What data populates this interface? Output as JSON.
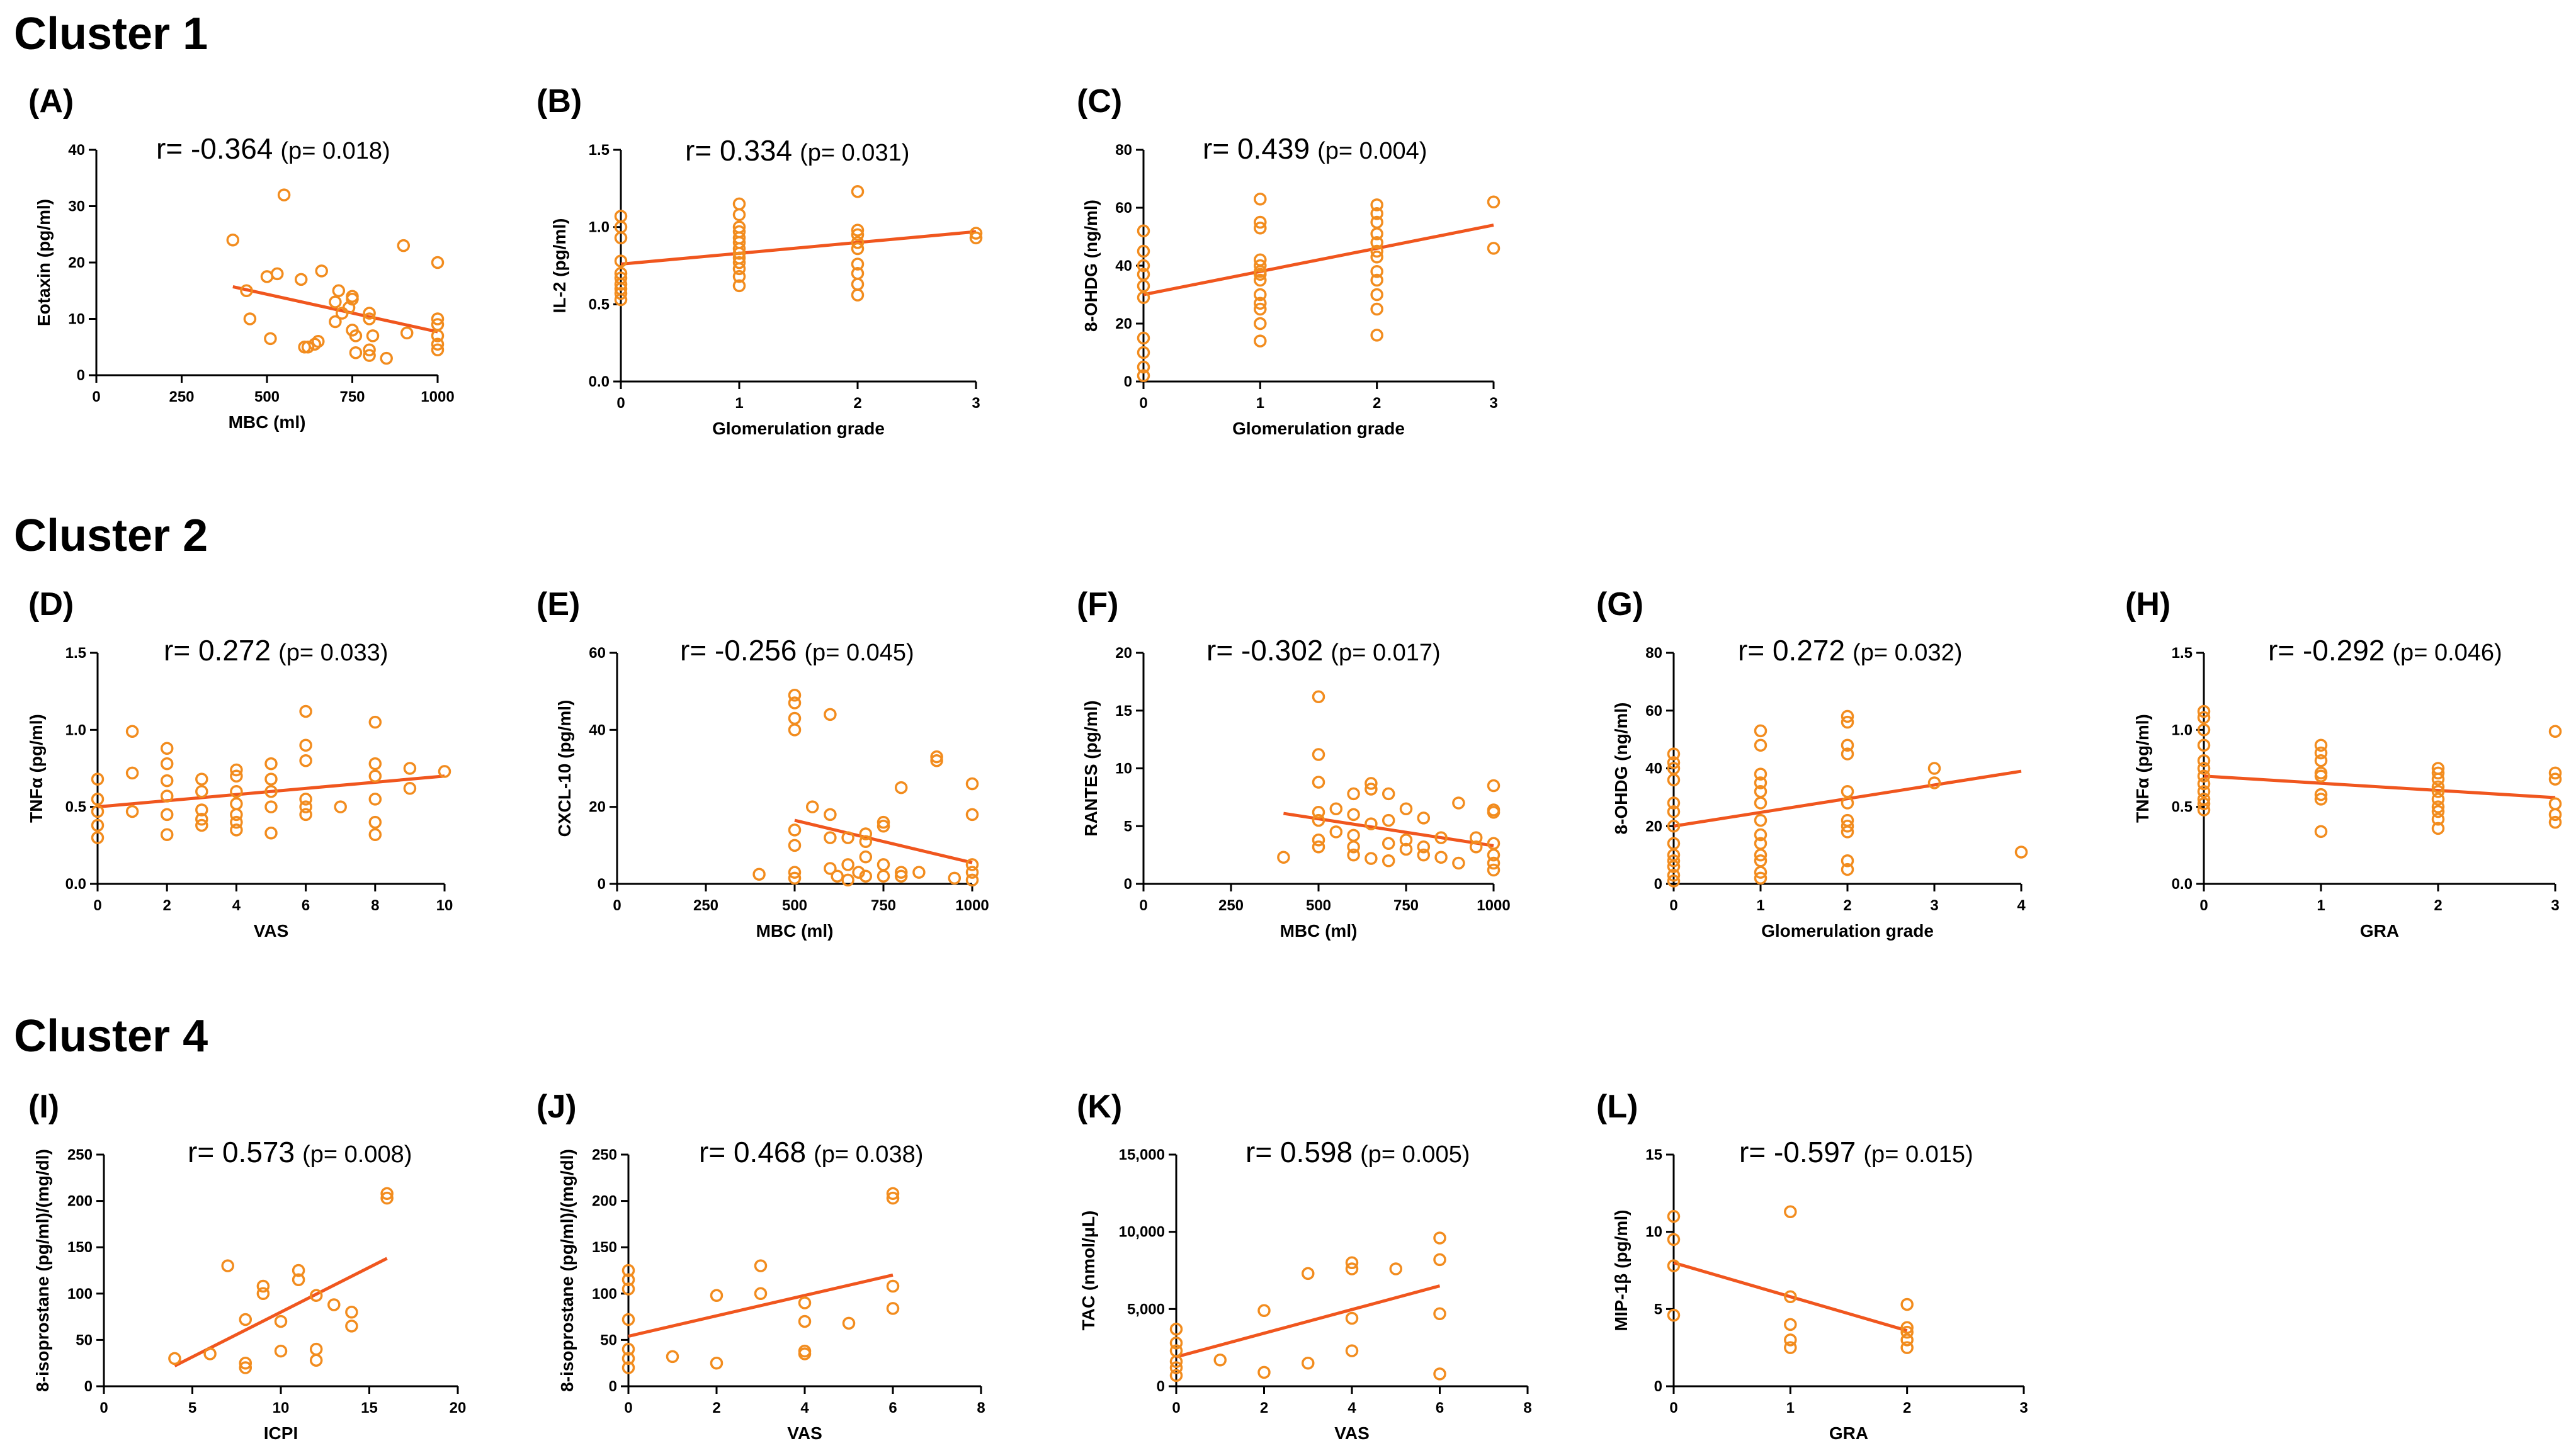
{
  "colors": {
    "marker": "#F28C1E",
    "fit_line": "#F0561E",
    "axis": "#000000"
  },
  "clusters": [
    {
      "title": "Cluster 1"
    },
    {
      "title": "Cluster 2"
    },
    {
      "title": "Cluster 4"
    }
  ],
  "chart_data": [
    {
      "id": "A",
      "letter": "(A)",
      "type": "scatter",
      "r_text": "r= -0.364",
      "p_text": "(p= 0.018)",
      "xlabel": "MBC (ml)",
      "ylabel": "Eotaxin (pg/ml)",
      "xlim": [
        0,
        1000
      ],
      "ylim": [
        0,
        40
      ],
      "xticks": [
        0,
        250,
        500,
        750,
        1000
      ],
      "yticks": [
        0,
        10,
        20,
        30,
        40
      ],
      "xtick_labels": [
        "0",
        "250",
        "500",
        "750",
        "1000"
      ],
      "ytick_labels": [
        "0",
        "10",
        "20",
        "30",
        "40"
      ],
      "x": [
        400,
        440,
        450,
        500,
        510,
        530,
        550,
        600,
        610,
        620,
        640,
        650,
        660,
        700,
        700,
        710,
        720,
        740,
        750,
        750,
        750,
        760,
        760,
        800,
        800,
        800,
        800,
        810,
        850,
        900,
        910,
        1000,
        1000,
        1000,
        1000,
        1000,
        1000
      ],
      "y": [
        24,
        15,
        10,
        17.5,
        6.5,
        18,
        32,
        17,
        5,
        5,
        5.5,
        6,
        18.5,
        9.5,
        13,
        15,
        11,
        12,
        14,
        13.5,
        8,
        4,
        7,
        11,
        10,
        4.5,
        3.5,
        7,
        3,
        23,
        7.5,
        20,
        10,
        9,
        7,
        5.5,
        4.5
      ],
      "fit": [
        [
          400,
          15.7
        ],
        [
          1000,
          7.7
        ]
      ]
    },
    {
      "id": "B",
      "letter": "(B)",
      "type": "scatter",
      "r_text": "r= 0.334",
      "p_text": "(p= 0.031)",
      "xlabel": "Glomerulation grade",
      "ylabel": "IL-2 (pg/ml)",
      "xlim": [
        0,
        3
      ],
      "ylim": [
        0,
        1.5
      ],
      "xticks": [
        0,
        1,
        2,
        3
      ],
      "yticks": [
        0,
        0.5,
        1.0,
        1.5
      ],
      "xtick_labels": [
        "0",
        "1",
        "2",
        "3"
      ],
      "ytick_labels": [
        "0.0",
        "0.5",
        "1.0",
        "1.5"
      ],
      "x": [
        0,
        0,
        0,
        0,
        0,
        0,
        0,
        0,
        0,
        0,
        1,
        1,
        1,
        1,
        1,
        1,
        1,
        1,
        1,
        1,
        1,
        1,
        1,
        2,
        2,
        2,
        2,
        2,
        2,
        2,
        2,
        2,
        3,
        3
      ],
      "y": [
        1.07,
        1.0,
        0.93,
        0.78,
        0.7,
        0.67,
        0.63,
        0.6,
        0.57,
        0.53,
        1.15,
        1.08,
        1.0,
        0.97,
        0.93,
        0.9,
        0.86,
        0.83,
        0.8,
        0.77,
        0.73,
        0.68,
        0.62,
        1.23,
        0.98,
        0.95,
        0.9,
        0.86,
        0.76,
        0.7,
        0.63,
        0.56,
        0.96,
        0.93
      ],
      "fit": [
        [
          0,
          0.76
        ],
        [
          3,
          0.97
        ]
      ]
    },
    {
      "id": "C",
      "letter": "(C)",
      "type": "scatter",
      "r_text": "r= 0.439",
      "p_text": "(p= 0.004)",
      "xlabel": "Glomerulation grade",
      "ylabel": "8-OHDG (ng/ml)",
      "xlim": [
        0,
        3
      ],
      "ylim": [
        0,
        80
      ],
      "xticks": [
        0,
        1,
        2,
        3
      ],
      "yticks": [
        0,
        20,
        40,
        60,
        80
      ],
      "xtick_labels": [
        "0",
        "1",
        "2",
        "3"
      ],
      "ytick_labels": [
        "0",
        "20",
        "40",
        "60",
        "80"
      ],
      "x": [
        0,
        0,
        0,
        0,
        0,
        0,
        0,
        0,
        0,
        0,
        1,
        1,
        1,
        1,
        1,
        1,
        1,
        1,
        1,
        1,
        1,
        1,
        1,
        2,
        2,
        2,
        2,
        2,
        2,
        2,
        2,
        2,
        2,
        2,
        2,
        3,
        3
      ],
      "y": [
        52,
        45,
        40,
        33,
        29,
        15,
        10,
        5,
        2,
        37,
        63,
        55,
        53,
        42,
        40,
        38,
        37,
        30,
        27,
        25,
        20,
        14,
        35,
        61,
        58,
        55,
        51,
        48,
        45,
        43,
        38,
        35,
        30,
        25,
        16,
        62,
        46
      ],
      "fit": [
        [
          0,
          30
        ],
        [
          3,
          54
        ]
      ]
    },
    {
      "id": "D",
      "letter": "(D)",
      "type": "scatter",
      "r_text": "r= 0.272",
      "p_text": "(p= 0.033)",
      "xlabel": "VAS",
      "ylabel": "TNFα (pg/ml)",
      "xlim": [
        0,
        10
      ],
      "ylim": [
        0,
        1.5
      ],
      "xticks": [
        0,
        2,
        4,
        6,
        8,
        10
      ],
      "yticks": [
        0,
        0.5,
        1.0,
        1.5
      ],
      "xtick_labels": [
        "0",
        "2",
        "4",
        "6",
        "8",
        "10"
      ],
      "ytick_labels": [
        "0.0",
        "0.5",
        "1.0",
        "1.5"
      ],
      "x": [
        0,
        0,
        0,
        0,
        0,
        1,
        1,
        1,
        2,
        2,
        2,
        2,
        2,
        2,
        3,
        3,
        3,
        3,
        3,
        4,
        4,
        4,
        4,
        4,
        4,
        4,
        5,
        5,
        5,
        5,
        5,
        6,
        6,
        6,
        6,
        6,
        6,
        7,
        8,
        8,
        8,
        8,
        8,
        8,
        9,
        9,
        10
      ],
      "y": [
        0.68,
        0.55,
        0.47,
        0.38,
        0.3,
        0.99,
        0.72,
        0.47,
        0.88,
        0.78,
        0.67,
        0.57,
        0.45,
        0.32,
        0.68,
        0.6,
        0.48,
        0.42,
        0.38,
        0.74,
        0.7,
        0.6,
        0.52,
        0.45,
        0.4,
        0.35,
        0.78,
        0.68,
        0.6,
        0.5,
        0.33,
        1.12,
        0.9,
        0.8,
        0.55,
        0.5,
        0.45,
        0.5,
        1.05,
        0.78,
        0.7,
        0.55,
        0.4,
        0.32,
        0.75,
        0.62,
        0.73
      ],
      "fit": [
        [
          0,
          0.5
        ],
        [
          10,
          0.7
        ]
      ]
    },
    {
      "id": "E",
      "letter": "(E)",
      "type": "scatter",
      "r_text": "r= -0.256",
      "p_text": "(p= 0.045)",
      "xlabel": "MBC (ml)",
      "ylabel": "CXCL-10 (pg/ml)",
      "xlim": [
        0,
        1000
      ],
      "ylim": [
        0,
        60
      ],
      "xticks": [
        0,
        250,
        500,
        750,
        1000
      ],
      "yticks": [
        0,
        20,
        40,
        60
      ],
      "xtick_labels": [
        "0",
        "250",
        "500",
        "750",
        "1000"
      ],
      "ytick_labels": [
        "0",
        "20",
        "40",
        "60"
      ],
      "x": [
        400,
        500,
        500,
        500,
        500,
        500,
        500,
        500,
        500,
        550,
        600,
        600,
        600,
        600,
        620,
        650,
        650,
        650,
        680,
        700,
        700,
        700,
        700,
        750,
        750,
        750,
        750,
        800,
        800,
        800,
        850,
        900,
        900,
        950,
        1000,
        1000,
        1000,
        1000,
        1000
      ],
      "y": [
        2.5,
        49,
        47,
        43,
        40,
        14,
        10,
        3,
        1.5,
        20,
        44,
        18,
        12,
        4,
        2,
        12,
        5,
        1,
        3,
        13,
        11,
        7,
        2,
        16,
        15,
        5,
        2,
        25,
        3,
        2,
        3,
        33,
        32,
        1.5,
        26,
        18,
        5,
        3,
        1
      ],
      "fit": [
        [
          500,
          16.5
        ],
        [
          1000,
          5.5
        ]
      ]
    },
    {
      "id": "F",
      "letter": "(F)",
      "type": "scatter",
      "r_text": "r= -0.302",
      "p_text": "(p= 0.017)",
      "xlabel": "MBC (ml)",
      "ylabel": "RANTES (pg/ml)",
      "xlim": [
        0,
        1000
      ],
      "ylim": [
        0,
        20
      ],
      "xticks": [
        0,
        250,
        500,
        750,
        1000
      ],
      "yticks": [
        0,
        5,
        10,
        15,
        20
      ],
      "xtick_labels": [
        "0",
        "250",
        "500",
        "750",
        "1000"
      ],
      "ytick_labels": [
        "0",
        "5",
        "10",
        "15",
        "20"
      ],
      "x": [
        400,
        500,
        500,
        500,
        500,
        500,
        500,
        500,
        550,
        550,
        600,
        600,
        600,
        600,
        600,
        650,
        650,
        650,
        650,
        700,
        700,
        700,
        700,
        750,
        750,
        750,
        800,
        800,
        800,
        850,
        850,
        900,
        900,
        950,
        950,
        1000,
        1000,
        1000,
        1000,
        1000,
        1000,
        1000
      ],
      "y": [
        2.3,
        16.2,
        11.2,
        8.8,
        6.2,
        5.5,
        3.8,
        3.2,
        6.5,
        4.5,
        7.8,
        6,
        4.2,
        3.2,
        2.5,
        8.7,
        8.2,
        5.2,
        2.2,
        7.8,
        5.5,
        3.5,
        2,
        6.5,
        3.8,
        3,
        5.7,
        3.2,
        2.5,
        4,
        2.3,
        7,
        1.8,
        4,
        3.2,
        8.5,
        6.4,
        6.2,
        3.5,
        2.5,
        1.8,
        1.2
      ],
      "fit": [
        [
          400,
          6.1
        ],
        [
          1000,
          3.3
        ]
      ]
    },
    {
      "id": "G",
      "letter": "(G)",
      "type": "scatter",
      "r_text": "r= 0.272",
      "p_text": "(p= 0.032)",
      "xlabel": "Glomerulation grade",
      "ylabel": "8-OHDG (ng/ml)",
      "xlim": [
        0,
        4
      ],
      "ylim": [
        0,
        80
      ],
      "xticks": [
        0,
        1,
        2,
        3,
        4
      ],
      "yticks": [
        0,
        20,
        40,
        60,
        80
      ],
      "xtick_labels": [
        "0",
        "1",
        "2",
        "3",
        "4"
      ],
      "ytick_labels": [
        "0",
        "20",
        "40",
        "60",
        "80"
      ],
      "x": [
        0,
        0,
        0,
        0,
        0,
        0,
        0,
        0,
        0,
        0,
        0,
        0,
        0,
        1,
        1,
        1,
        1,
        1,
        1,
        1,
        1,
        1,
        1,
        1,
        1,
        1,
        2,
        2,
        2,
        2,
        2,
        2,
        2,
        2,
        2,
        2,
        2,
        3,
        3,
        4
      ],
      "y": [
        45,
        42,
        40,
        36,
        28,
        25,
        20,
        14,
        10,
        8,
        6,
        3,
        1,
        53,
        48,
        38,
        35,
        32,
        28,
        22,
        17,
        14,
        10,
        8,
        4,
        2,
        58,
        56,
        48,
        45,
        32,
        28,
        22,
        20,
        18,
        8,
        5,
        40,
        35,
        11
      ],
      "fit": [
        [
          0,
          20
        ],
        [
          4,
          39
        ]
      ]
    },
    {
      "id": "H",
      "letter": "(H)",
      "type": "scatter",
      "r_text": "r= -0.292",
      "p_text": "(p= 0.046)",
      "xlabel": "GRA",
      "ylabel": "TNFα (pg/ml)",
      "xlim": [
        0,
        3
      ],
      "ylim": [
        0,
        1.5
      ],
      "xticks": [
        0,
        1,
        2,
        3
      ],
      "yticks": [
        0,
        0.5,
        1.0,
        1.5
      ],
      "xtick_labels": [
        "0",
        "1",
        "2",
        "3"
      ],
      "ytick_labels": [
        "0.0",
        "0.5",
        "1.0",
        "1.5"
      ],
      "x": [
        0,
        0,
        0,
        0,
        0,
        0,
        0,
        0,
        0,
        0,
        0,
        0,
        1,
        1,
        1,
        1,
        1,
        1,
        1,
        1,
        2,
        2,
        2,
        2,
        2,
        2,
        2,
        2,
        2,
        2,
        3,
        3,
        3,
        3,
        3,
        3
      ],
      "y": [
        1.12,
        1.08,
        1.0,
        0.9,
        0.8,
        0.75,
        0.7,
        0.65,
        0.6,
        0.55,
        0.52,
        0.48,
        0.9,
        0.85,
        0.8,
        0.72,
        0.7,
        0.58,
        0.55,
        0.34,
        0.75,
        0.72,
        0.68,
        0.63,
        0.6,
        0.55,
        0.5,
        0.47,
        0.42,
        0.36,
        0.99,
        0.72,
        0.68,
        0.52,
        0.45,
        0.4
      ],
      "fit": [
        [
          0,
          0.7
        ],
        [
          3,
          0.56
        ]
      ]
    },
    {
      "id": "I",
      "letter": "(I)",
      "type": "scatter",
      "r_text": "r= 0.573",
      "p_text": "(p= 0.008)",
      "xlabel": "ICPI",
      "ylabel": "8-isoprostane (pg/ml)/(mg/dl)",
      "xlim": [
        0,
        20
      ],
      "ylim": [
        0,
        250
      ],
      "xticks": [
        0,
        5,
        10,
        15,
        20
      ],
      "yticks": [
        0,
        50,
        100,
        150,
        200,
        250
      ],
      "xtick_labels": [
        "0",
        "5",
        "10",
        "15",
        "20"
      ],
      "ytick_labels": [
        "0",
        "50",
        "100",
        "150",
        "200",
        "250"
      ],
      "x": [
        4,
        6,
        7,
        8,
        8,
        8,
        9,
        9,
        10,
        10,
        11,
        11,
        12,
        12,
        12,
        13,
        14,
        14,
        16,
        16
      ],
      "y": [
        30,
        35,
        130,
        72,
        25,
        20,
        108,
        100,
        70,
        38,
        125,
        115,
        98,
        40,
        28,
        88,
        80,
        65,
        208,
        203
      ],
      "fit": [
        [
          4,
          22
        ],
        [
          16,
          138
        ]
      ]
    },
    {
      "id": "J",
      "letter": "(J)",
      "type": "scatter",
      "r_text": "r= 0.468",
      "p_text": "(p= 0.038)",
      "xlabel": "VAS",
      "ylabel": "8-isoprostane (pg/ml)/(mg/dl)",
      "xlim": [
        0,
        8
      ],
      "ylim": [
        0,
        250
      ],
      "xticks": [
        0,
        2,
        4,
        6,
        8
      ],
      "yticks": [
        0,
        50,
        100,
        150,
        200,
        250
      ],
      "xtick_labels": [
        "0",
        "2",
        "4",
        "6",
        "8"
      ],
      "ytick_labels": [
        "0",
        "50",
        "100",
        "150",
        "200",
        "250"
      ],
      "x": [
        0,
        0,
        0,
        0,
        0,
        0,
        0,
        1,
        2,
        2,
        3,
        3,
        4,
        4,
        4,
        4,
        5,
        6,
        6,
        6,
        6
      ],
      "y": [
        125,
        115,
        105,
        72,
        40,
        30,
        20,
        32,
        98,
        25,
        130,
        100,
        90,
        70,
        38,
        35,
        68,
        208,
        203,
        108,
        84
      ],
      "fit": [
        [
          0,
          54
        ],
        [
          6,
          120
        ]
      ]
    },
    {
      "id": "K",
      "letter": "(K)",
      "type": "scatter",
      "r_text": "r= 0.598",
      "p_text": "(p= 0.005)",
      "xlabel": "VAS",
      "ylabel": "TAC (nmol/μL)",
      "xlim": [
        0,
        8
      ],
      "ylim": [
        0,
        15000
      ],
      "xticks": [
        0,
        2,
        4,
        6,
        8
      ],
      "yticks": [
        0,
        5000,
        10000,
        15000
      ],
      "xtick_labels": [
        "0",
        "2",
        "4",
        "6",
        "8"
      ],
      "ytick_labels": [
        "0",
        "5,000",
        "10,000",
        "15,000"
      ],
      "x": [
        0,
        0,
        0,
        0,
        0,
        0,
        1,
        2,
        2,
        3,
        3,
        4,
        4,
        4,
        4,
        5,
        6,
        6,
        6,
        6
      ],
      "y": [
        3700,
        2800,
        2300,
        1600,
        1200,
        700,
        1700,
        4900,
        900,
        7300,
        1500,
        8000,
        7600,
        4400,
        2300,
        7600,
        9600,
        8200,
        4700,
        800
      ],
      "fit": [
        [
          0,
          1900
        ],
        [
          6,
          6500
        ]
      ]
    },
    {
      "id": "L",
      "letter": "(L)",
      "type": "scatter",
      "r_text": "r= -0.597",
      "p_text": "(p= 0.015)",
      "xlabel": "GRA",
      "ylabel": "MIP-1β (pg/ml)",
      "xlim": [
        0,
        3
      ],
      "ylim": [
        0,
        15
      ],
      "xticks": [
        0,
        1,
        2,
        3
      ],
      "yticks": [
        0,
        5,
        10,
        15
      ],
      "xtick_labels": [
        "0",
        "1",
        "2",
        "3"
      ],
      "ytick_labels": [
        "0",
        "5",
        "10",
        "15"
      ],
      "x": [
        0,
        0,
        0,
        0,
        1,
        1,
        1,
        1,
        1,
        2,
        2,
        2,
        2,
        2
      ],
      "y": [
        11,
        9.5,
        7.8,
        4.6,
        11.3,
        5.8,
        4,
        3,
        2.5,
        5.3,
        3.8,
        3.5,
        3,
        2.5
      ],
      "fit": [
        [
          0,
          8
        ],
        [
          2,
          3.6
        ]
      ]
    }
  ]
}
